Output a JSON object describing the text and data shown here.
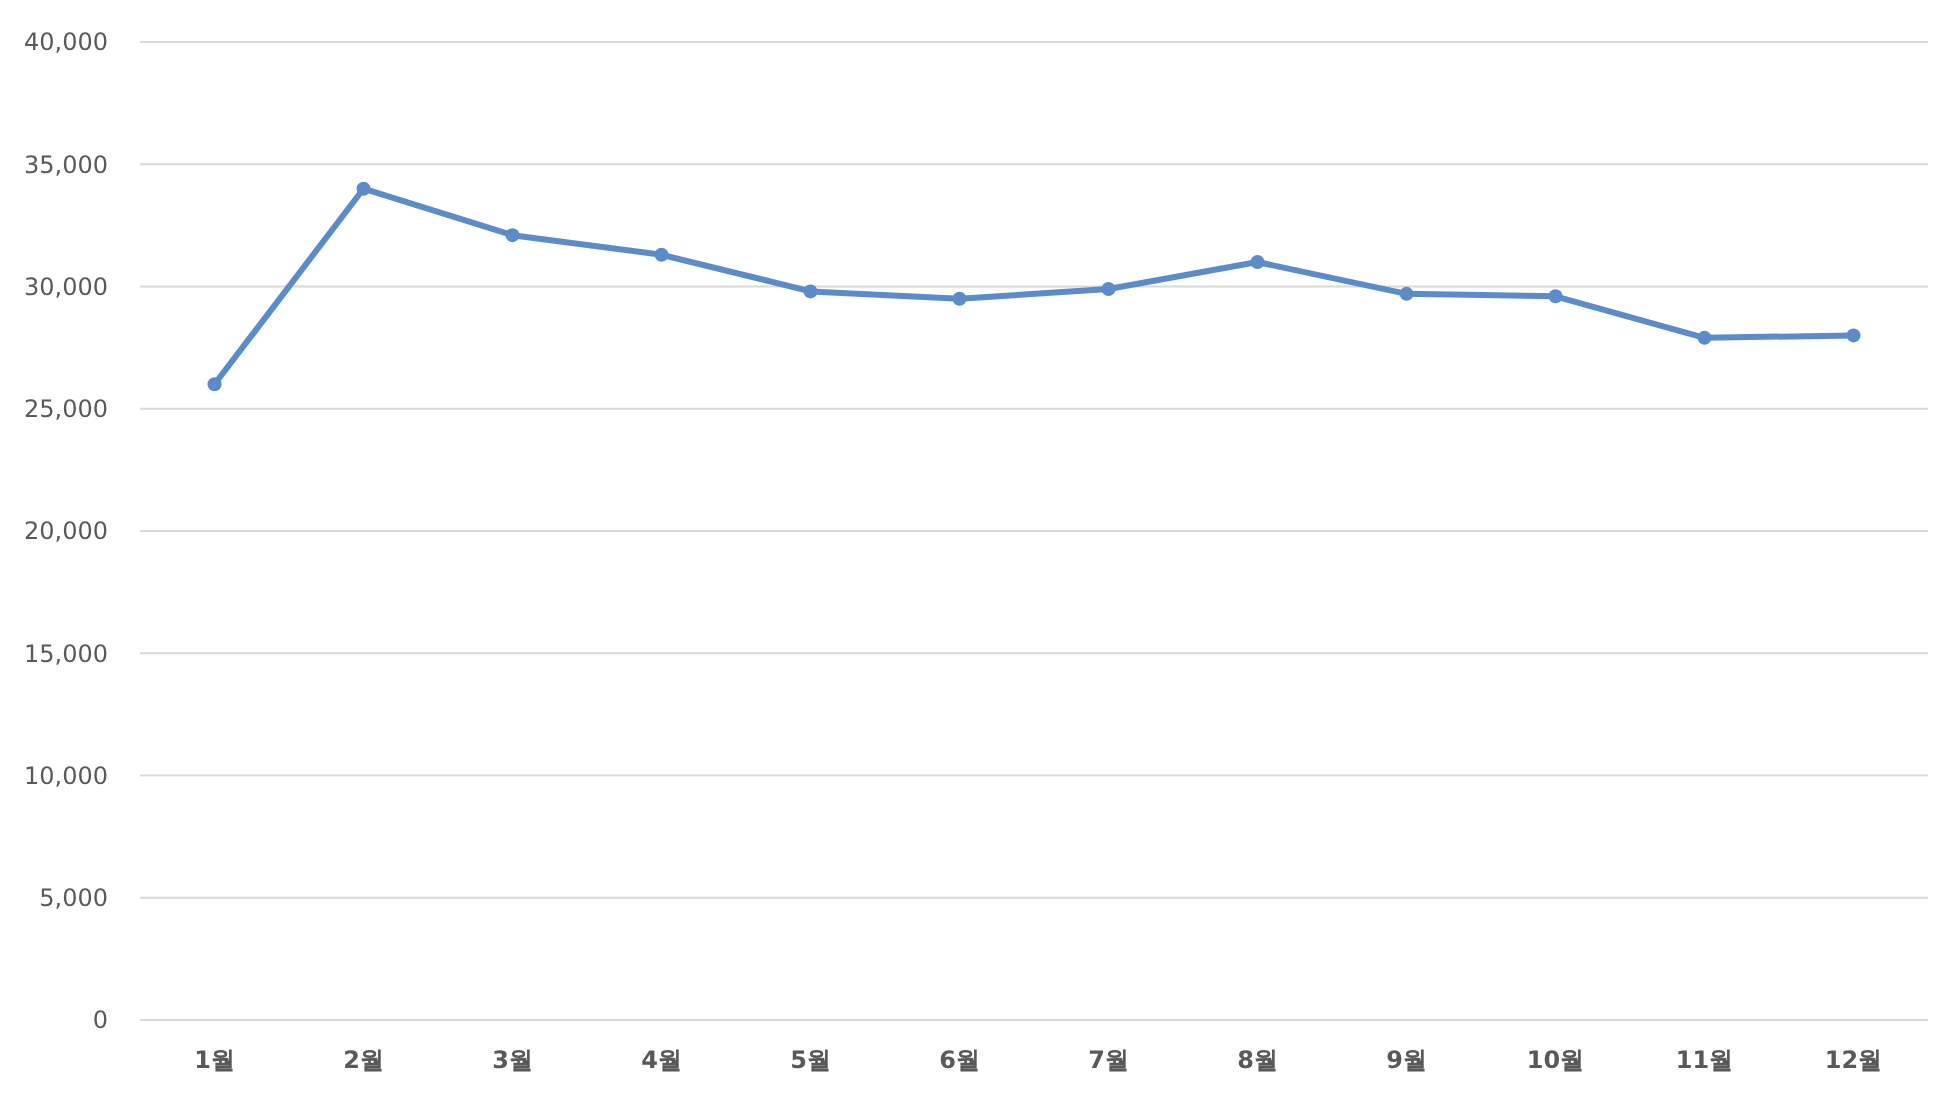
{
  "chart_data": {
    "type": "line",
    "categories": [
      "1월",
      "2월",
      "3월",
      "4월",
      "5월",
      "6월",
      "7월",
      "8월",
      "9월",
      "10월",
      "11월",
      "12월"
    ],
    "series": [
      {
        "color": "#5b8bc9",
        "values": [
          26000,
          34000,
          32100,
          31300,
          29800,
          29500,
          29900,
          31000,
          29700,
          29600,
          27900,
          28000
        ]
      }
    ],
    "ylim": [
      0,
      40000
    ],
    "yticks": [
      {
        "value": 0,
        "label": "0"
      },
      {
        "value": 5000,
        "label": "5,000"
      },
      {
        "value": 10000,
        "label": "10,000"
      },
      {
        "value": 15000,
        "label": "15,000"
      },
      {
        "value": 20000,
        "label": "20,000"
      },
      {
        "value": 25000,
        "label": "25,000"
      },
      {
        "value": 30000,
        "label": "30,000"
      },
      {
        "value": 35000,
        "label": "35,000"
      },
      {
        "value": 40000,
        "label": "40,000"
      }
    ],
    "grid": "y",
    "marker": "circle",
    "line_style": "solid"
  }
}
